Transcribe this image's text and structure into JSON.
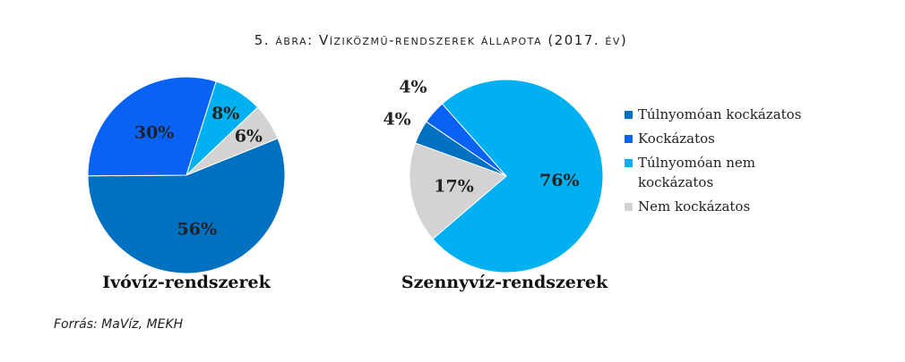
{
  "title": "5. ábra: Víziközmű-rendszerek állapota (2017. év)",
  "source": "Forrás: MaVíz, MEKH",
  "chart_data": [
    {
      "type": "pie",
      "title": "Ivóvíz-rendszerek",
      "values": [
        56,
        30,
        8,
        6
      ],
      "value_labels": [
        "56%",
        "30%",
        "8%",
        "6%"
      ],
      "colors": [
        "#0070c0",
        "#0a62f5",
        "#00b0f0",
        "#d4d2d2"
      ]
    },
    {
      "type": "pie",
      "title": "Szennyvíz-rendszerek",
      "categories": [
        "Túlnyomóan kockázatos",
        "Kockázatos",
        "Túlnyomóan nem kockázatos",
        "Nem kockázatos"
      ],
      "values": [
        4,
        4,
        76,
        17
      ],
      "value_labels": [
        "4%",
        "4%",
        "76%",
        "17%"
      ],
      "colors": [
        "#0070c0",
        "#0a62f5",
        "#00b0f0",
        "#d4d2d2"
      ],
      "legend": "right"
    }
  ]
}
